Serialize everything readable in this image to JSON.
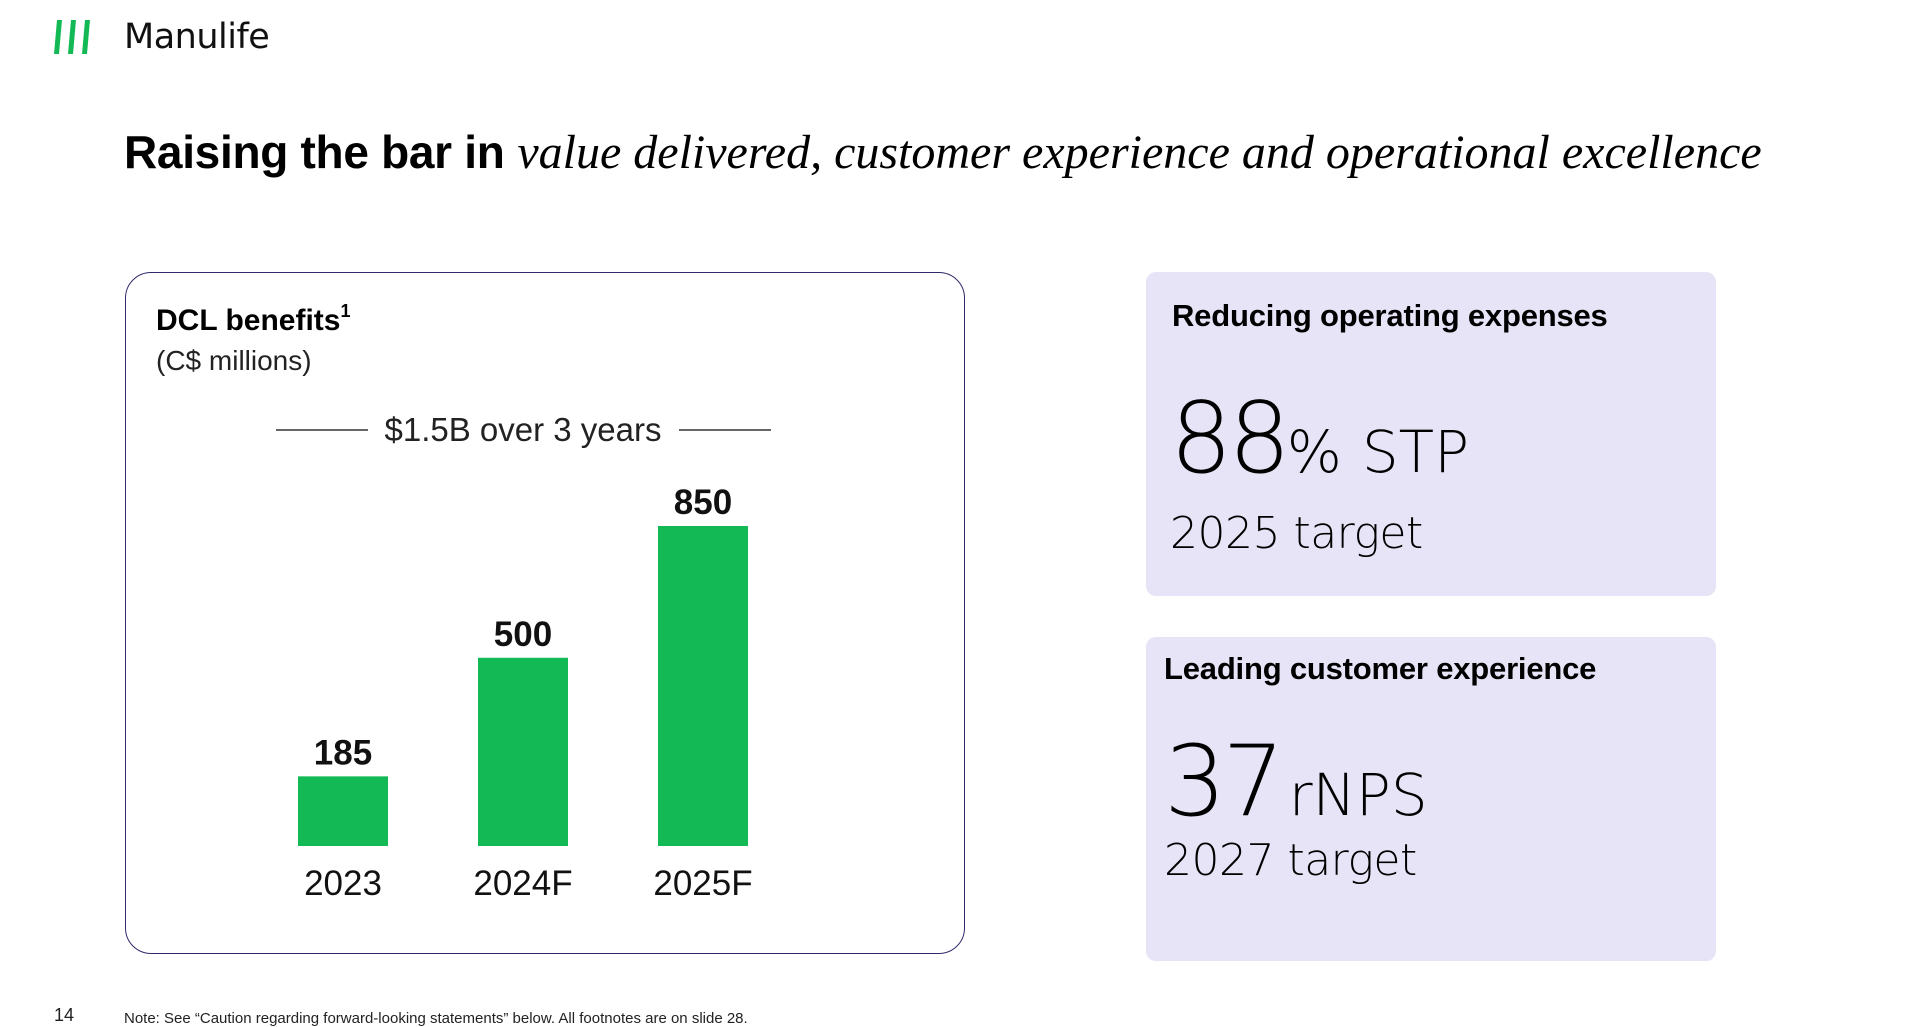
{
  "brand": {
    "name": "Manulife",
    "logo_icon": "manulife-stripes-icon",
    "accent_color": "#12b955",
    "card_bg": "#e6e4f6",
    "card_border": "#2e2a6b"
  },
  "title": {
    "bold": "Raising the bar in",
    "italic": "value delivered, customer experience and operational excellence"
  },
  "chart_card": {
    "title": "DCL benefits",
    "title_footnote": "1",
    "subtitle": "(C$ millions)",
    "span_label": "$1.5B over 3 years"
  },
  "chart_data": {
    "type": "bar",
    "title": "DCL benefits",
    "ylabel": "(C$ millions)",
    "annotation": "$1.5B over 3 years",
    "categories": [
      "2023",
      "2024F",
      "2025F"
    ],
    "values": [
      185,
      500,
      850
    ],
    "data_labels": [
      "185",
      "500",
      "850"
    ],
    "ylim": [
      0,
      850
    ],
    "grid": false,
    "color": "#12b955"
  },
  "kpis": [
    {
      "heading": "Reducing operating expenses",
      "value": "88",
      "unit": "%",
      "suffix": "STP",
      "target": "2025 target"
    },
    {
      "heading": "Leading customer experience",
      "value": "37",
      "unit": "",
      "suffix": "rNPS",
      "target": "2027 target"
    }
  ],
  "footer": {
    "page_number": "14",
    "note": "Note: See “Caution regarding forward-looking statements” below. All footnotes are on slide 28."
  }
}
